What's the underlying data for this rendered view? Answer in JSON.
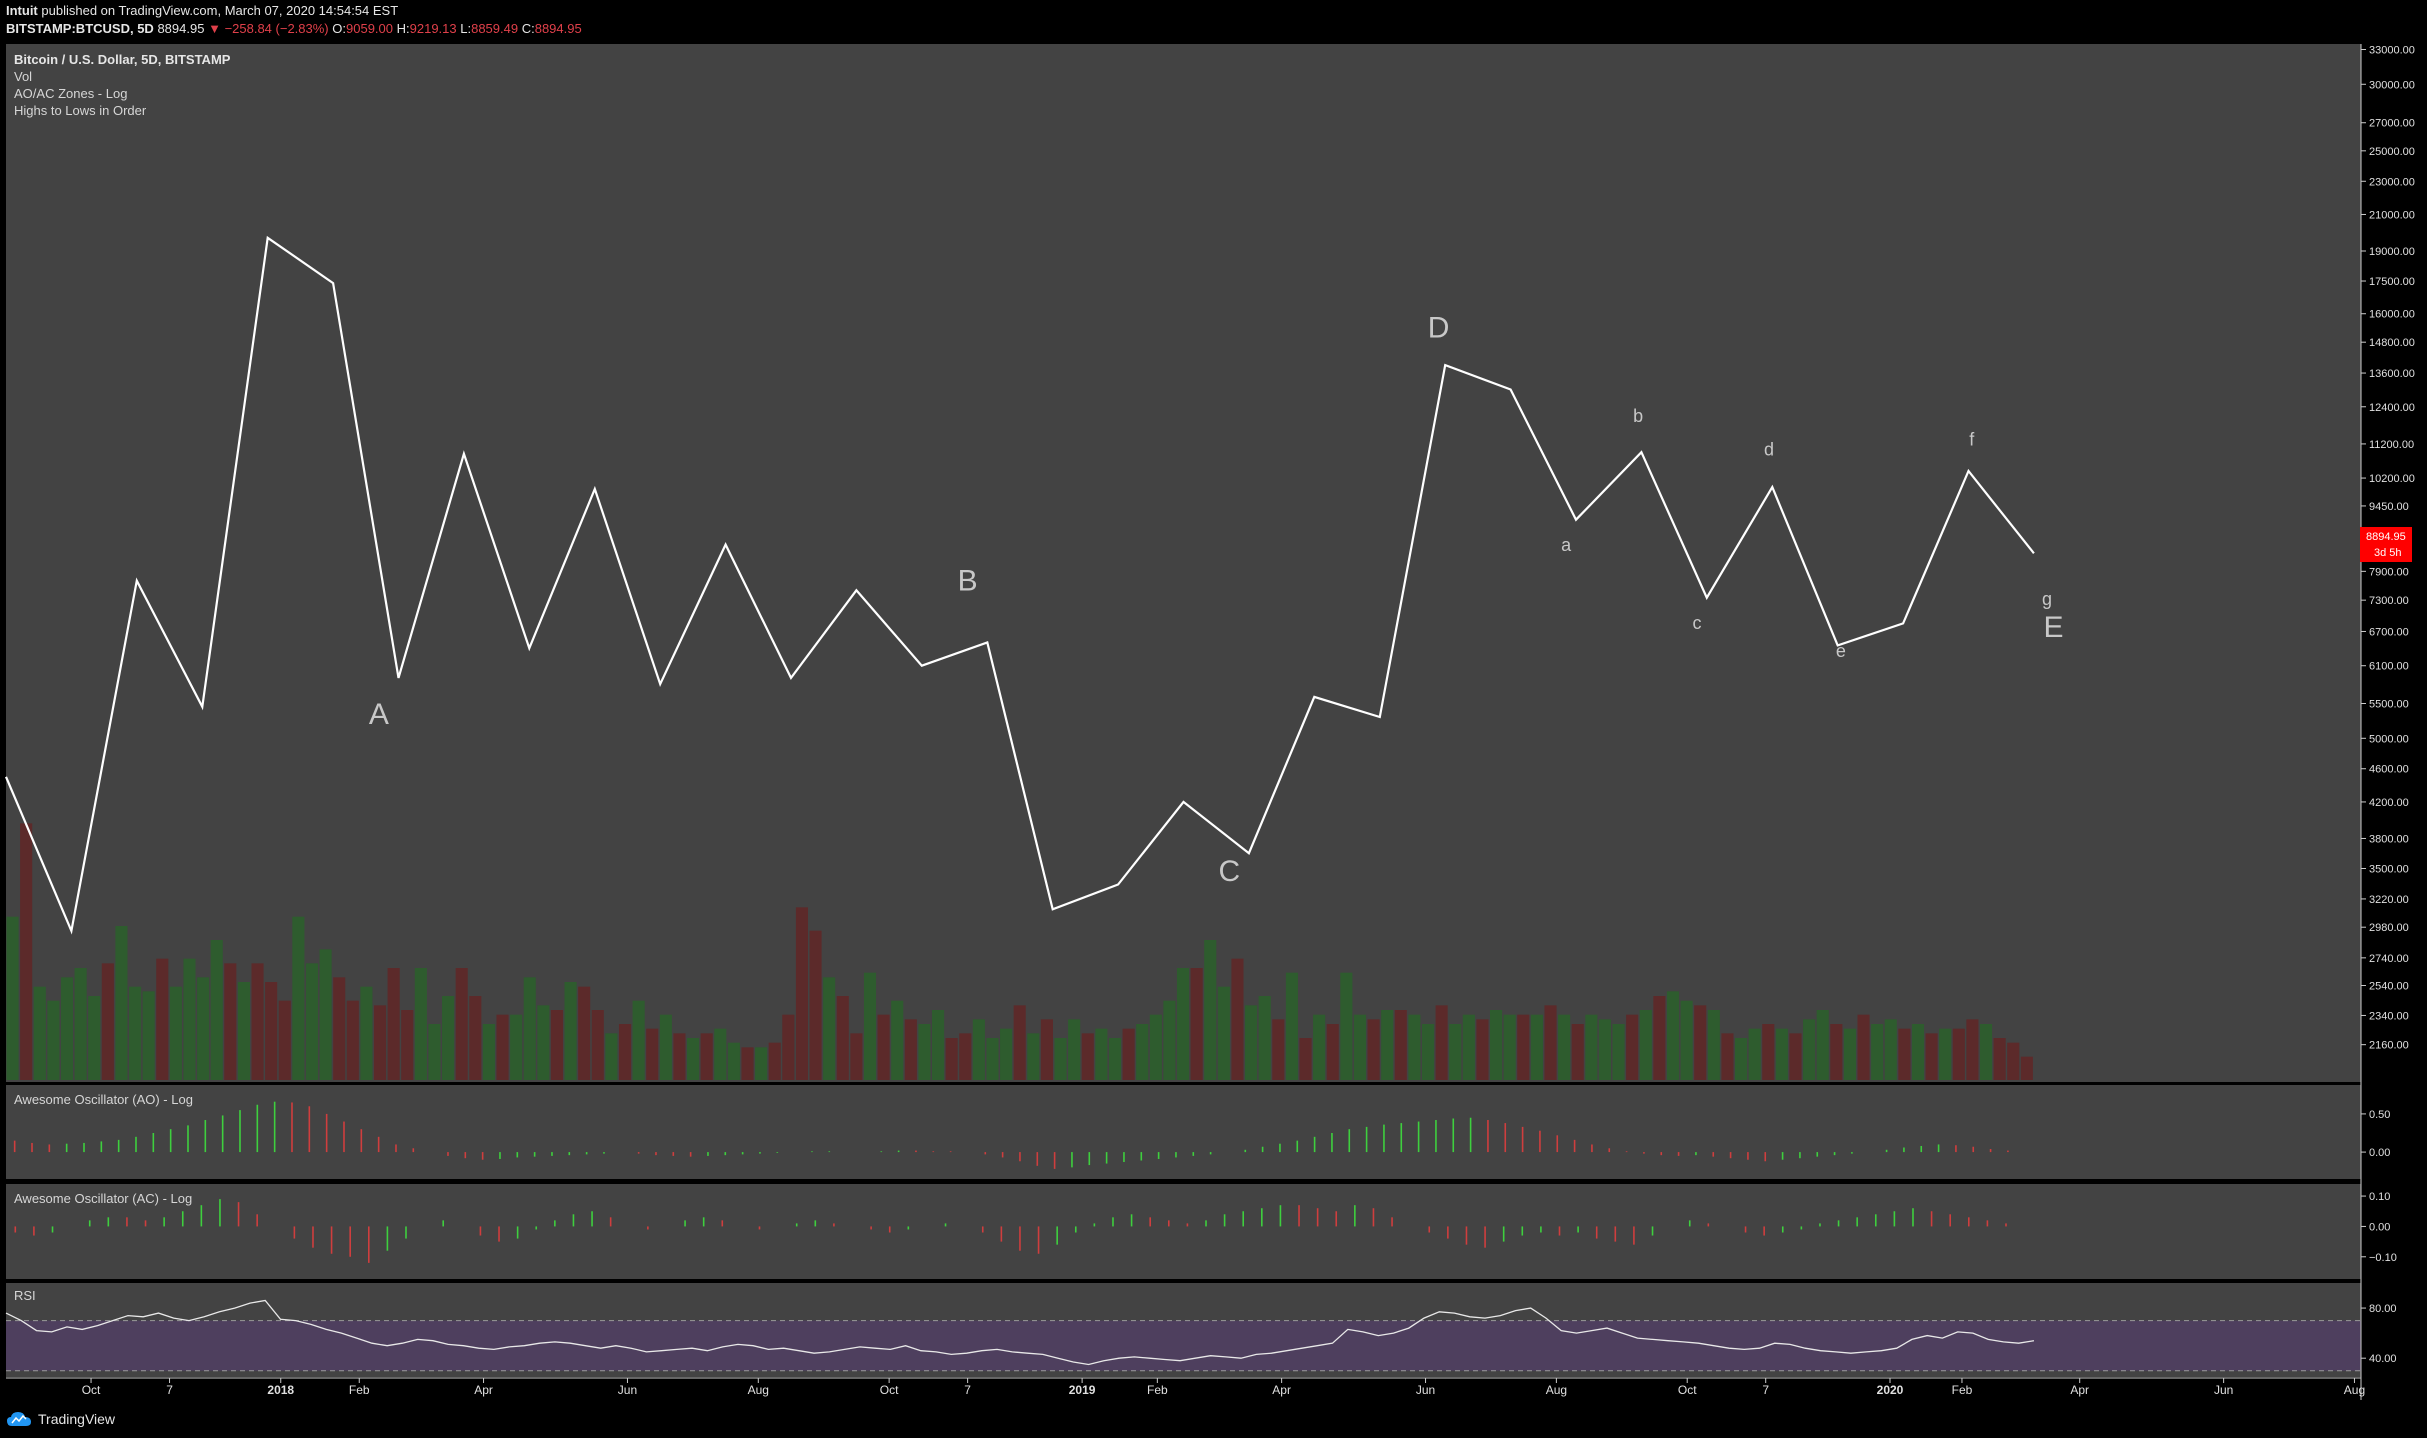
{
  "header": {
    "author": "Intuit",
    "published_text": "published on TradingView.com, March 07, 2020 14:54:54 EST",
    "symbol": "BITSTAMP:BTCUSD, 5D",
    "last": "8894.95",
    "change_arrow": "▼",
    "change": "−258.84 (−2.83%)",
    "open_label": "O:",
    "open": "9059.00",
    "high_label": "H:",
    "high": "9219.13",
    "low_label": "L:",
    "low": "8859.49",
    "close_label": "C:",
    "close": "8894.95"
  },
  "legend": {
    "title": "Bitcoin / U.S. Dollar, 5D, BITSTAMP",
    "vol": "Vol",
    "zones": "AO/AC Zones - Log",
    "highs": "Highs to Lows in Order"
  },
  "price_badge": {
    "price": "8894.95",
    "countdown": "3d 5h",
    "color": "#ff0000"
  },
  "panes": {
    "ao_title": "Awesome Oscillator (AO) - Log",
    "ac_title": "Awesome Oscillator (AC) - Log",
    "rsi_title": "RSI"
  },
  "footer": {
    "brand": "TradingView"
  },
  "colors": {
    "bg": "#000000",
    "pane": "#434343",
    "line": "#ffffff",
    "up": "#2e5c2e",
    "down": "#5c2a2a",
    "osc_up": "#3ecf3e",
    "osc_down": "#cf3e3e",
    "rsi_band": "#4e3f5e"
  },
  "chart_data": [
    {
      "type": "line",
      "name": "main",
      "scale": "log",
      "ylim": [
        1950,
        33500
      ],
      "y_ticks": [
        "33000.00",
        "30000.00",
        "27000.00",
        "25000.00",
        "23000.00",
        "21000.00",
        "19000.00",
        "17500.00",
        "16000.00",
        "14800.00",
        "13600.00",
        "12400.00",
        "11200.00",
        "10200.00",
        "9450.00",
        "8600.00",
        "7900.00",
        "7300.00",
        "6700.00",
        "6100.00",
        "5500.00",
        "5000.00",
        "4600.00",
        "4200.00",
        "3800.00",
        "3500.00",
        "3220.00",
        "2980.00",
        "2740.00",
        "2540.00",
        "2340.00",
        "2160.00"
      ],
      "x_ticks": [
        {
          "label": "Oct",
          "t": 1.3
        },
        {
          "label": "7",
          "t": 2.5
        },
        {
          "label": "2018",
          "t": 4.2
        },
        {
          "label": "Feb",
          "t": 5.4
        },
        {
          "label": "Apr",
          "t": 7.3
        },
        {
          "label": "Jun",
          "t": 9.5
        },
        {
          "label": "Aug",
          "t": 11.5
        },
        {
          "label": "Oct",
          "t": 13.5
        },
        {
          "label": "7",
          "t": 14.7
        },
        {
          "label": "2019",
          "t": 16.45
        },
        {
          "label": "Feb",
          "t": 17.6
        },
        {
          "label": "Apr",
          "t": 19.5
        },
        {
          "label": "Jun",
          "t": 21.7
        },
        {
          "label": "Aug",
          "t": 23.7
        },
        {
          "label": "Oct",
          "t": 25.7
        },
        {
          "label": "7",
          "t": 26.9
        },
        {
          "label": "2020",
          "t": 28.8
        },
        {
          "label": "Feb",
          "t": 29.9
        },
        {
          "label": "Apr",
          "t": 31.7
        },
        {
          "label": "Jun",
          "t": 33.9
        },
        {
          "label": "Aug",
          "t": 35.9
        }
      ],
      "x_range": [
        0,
        36
      ],
      "points": [
        {
          "t": 0,
          "y": 4500
        },
        {
          "t": 1,
          "y": 2950
        },
        {
          "t": 2,
          "y": 7700
        },
        {
          "t": 3,
          "y": 5450
        },
        {
          "t": 4,
          "y": 19700
        },
        {
          "t": 5,
          "y": 17400
        },
        {
          "t": 6,
          "y": 5900
        },
        {
          "t": 7,
          "y": 10900
        },
        {
          "t": 8,
          "y": 6400
        },
        {
          "t": 9,
          "y": 9900
        },
        {
          "t": 10,
          "y": 5800
        },
        {
          "t": 11,
          "y": 8500
        },
        {
          "t": 12,
          "y": 5900
        },
        {
          "t": 13,
          "y": 7500
        },
        {
          "t": 14,
          "y": 6100
        },
        {
          "t": 15,
          "y": 6500
        },
        {
          "t": 16,
          "y": 3130
        },
        {
          "t": 17,
          "y": 3350
        },
        {
          "t": 18,
          "y": 4200
        },
        {
          "t": 19,
          "y": 3650
        },
        {
          "t": 20,
          "y": 5600
        },
        {
          "t": 21,
          "y": 5300
        },
        {
          "t": 22,
          "y": 13900
        },
        {
          "t": 23,
          "y": 13000
        },
        {
          "t": 24,
          "y": 9100
        },
        {
          "t": 25,
          "y": 10950
        },
        {
          "t": 26,
          "y": 7350
        },
        {
          "t": 27,
          "y": 9950
        },
        {
          "t": 28,
          "y": 6450
        },
        {
          "t": 29,
          "y": 6850
        },
        {
          "t": 30,
          "y": 10400
        },
        {
          "t": 31,
          "y": 8300
        }
      ],
      "annotations": [
        {
          "text": "A",
          "t": 5.7,
          "y": 5200,
          "size": "big"
        },
        {
          "text": "B",
          "t": 14.7,
          "y": 7500,
          "size": "big"
        },
        {
          "text": "C",
          "t": 18.7,
          "y": 3380,
          "size": "big"
        },
        {
          "text": "D",
          "t": 21.9,
          "y": 15000,
          "size": "big"
        },
        {
          "text": "E",
          "t": 31.3,
          "y": 6600,
          "size": "big"
        },
        {
          "text": "a",
          "t": 23.85,
          "y": 8350,
          "size": "small"
        },
        {
          "text": "b",
          "t": 24.95,
          "y": 11900,
          "size": "small"
        },
        {
          "text": "c",
          "t": 25.85,
          "y": 6750,
          "size": "small"
        },
        {
          "text": "d",
          "t": 26.95,
          "y": 10850,
          "size": "small"
        },
        {
          "text": "e",
          "t": 28.05,
          "y": 6250,
          "size": "small"
        },
        {
          "text": "f",
          "t": 30.05,
          "y": 11150,
          "size": "small"
        },
        {
          "text": "g",
          "t": 31.2,
          "y": 7200,
          "size": "small"
        }
      ]
    },
    {
      "type": "bar",
      "name": "volume",
      "values": [
        35,
        55,
        20,
        17,
        22,
        24,
        18,
        25,
        33,
        20,
        19,
        26,
        20,
        26,
        22,
        30,
        25,
        21,
        25,
        21,
        17,
        35,
        25,
        28,
        22,
        17,
        20,
        16,
        24,
        15,
        24,
        12,
        18,
        24,
        18,
        12,
        14,
        14,
        22,
        16,
        15,
        21,
        20,
        15,
        10,
        12,
        17,
        11,
        14,
        10,
        9,
        10,
        11,
        8,
        7,
        7,
        8,
        14,
        37,
        32,
        22,
        18,
        10,
        23,
        14,
        17,
        13,
        12,
        15,
        9,
        10,
        13,
        9,
        11,
        16,
        10,
        13,
        9,
        13,
        10,
        11,
        9,
        11,
        12,
        14,
        17,
        24,
        24,
        30,
        20,
        26,
        16,
        18,
        13,
        23,
        9,
        14,
        12,
        23,
        14,
        13,
        15,
        15,
        14,
        12,
        16,
        12,
        14,
        13,
        15,
        14,
        14,
        14,
        16,
        14,
        12,
        14,
        13,
        12,
        14,
        15,
        18,
        19,
        17,
        16,
        15,
        10,
        9,
        11,
        12,
        11,
        10,
        13,
        15,
        12,
        11,
        14,
        12,
        13,
        11,
        12,
        10,
        11,
        11,
        13,
        12,
        9,
        8,
        5
      ],
      "up": [
        true,
        false,
        true,
        true,
        true,
        true,
        true,
        false,
        true,
        true,
        true,
        false,
        true,
        true,
        true,
        true,
        false,
        true,
        false,
        false,
        false,
        true,
        true,
        true,
        false,
        false,
        true,
        false,
        false,
        false,
        true,
        true,
        true,
        false,
        false,
        true,
        false,
        true,
        true,
        true,
        false,
        true,
        false,
        false,
        true,
        false,
        true,
        false,
        true,
        false,
        true,
        false,
        true,
        true,
        false,
        true,
        false,
        false,
        false,
        false,
        true,
        false,
        false,
        true,
        false,
        true,
        false,
        true,
        true,
        false,
        false,
        true,
        true,
        true,
        false,
        true,
        false,
        true,
        true,
        false,
        true,
        true,
        false,
        true,
        true,
        true,
        true,
        false,
        true,
        true,
        false,
        true,
        true,
        false,
        true,
        false,
        true,
        false,
        true,
        true,
        false,
        true,
        false,
        true,
        true,
        false,
        true,
        true,
        false,
        true,
        true,
        false,
        true,
        false,
        true,
        false,
        true,
        true,
        true,
        false,
        true,
        false,
        true,
        true,
        false,
        true,
        false,
        true,
        true,
        false,
        true,
        false,
        true,
        true,
        false,
        true,
        false,
        true,
        true,
        false,
        true,
        false,
        true,
        false,
        false,
        true,
        false,
        false,
        false
      ],
      "ylim": [
        0,
        60
      ]
    },
    {
      "type": "bar",
      "name": "AO",
      "y_ticks": [
        "0.50",
        "0.00"
      ],
      "ylim": [
        -0.3,
        0.8
      ],
      "values": [
        0.15,
        0.12,
        0.1,
        0.11,
        0.12,
        0.14,
        0.16,
        0.2,
        0.25,
        0.3,
        0.35,
        0.42,
        0.48,
        0.55,
        0.62,
        0.66,
        0.65,
        0.6,
        0.5,
        0.4,
        0.3,
        0.2,
        0.1,
        0.05,
        0.0,
        -0.05,
        -0.08,
        -0.1,
        -0.09,
        -0.07,
        -0.06,
        -0.05,
        -0.04,
        -0.03,
        -0.02,
        0.0,
        -0.02,
        -0.04,
        -0.05,
        -0.06,
        -0.05,
        -0.04,
        -0.03,
        -0.02,
        -0.01,
        0.0,
        0.01,
        0.01,
        0.0,
        0.0,
        0.01,
        0.02,
        0.02,
        0.01,
        0.01,
        0.0,
        -0.03,
        -0.07,
        -0.12,
        -0.18,
        -0.22,
        -0.2,
        -0.17,
        -0.15,
        -0.13,
        -0.11,
        -0.09,
        -0.07,
        -0.05,
        -0.03,
        0.0,
        0.03,
        0.07,
        0.11,
        0.15,
        0.2,
        0.25,
        0.3,
        0.33,
        0.36,
        0.38,
        0.4,
        0.42,
        0.44,
        0.45,
        0.42,
        0.38,
        0.33,
        0.28,
        0.22,
        0.16,
        0.1,
        0.05,
        0.01,
        -0.02,
        -0.04,
        -0.05,
        -0.04,
        -0.06,
        -0.08,
        -0.1,
        -0.12,
        -0.1,
        -0.08,
        -0.06,
        -0.04,
        -0.02,
        0.0,
        0.03,
        0.06,
        0.08,
        0.1,
        0.09,
        0.07,
        0.04,
        0.02,
        0.0
      ],
      "up": [
        false,
        false,
        false,
        true,
        true,
        true,
        true,
        true,
        true,
        true,
        true,
        true,
        true,
        true,
        true,
        true,
        false,
        false,
        false,
        false,
        false,
        false,
        false,
        false,
        false,
        false,
        false,
        false,
        true,
        true,
        true,
        true,
        true,
        true,
        true,
        true,
        false,
        false,
        false,
        false,
        true,
        true,
        true,
        true,
        true,
        true,
        true,
        true,
        false,
        false,
        true,
        true,
        false,
        false,
        false,
        false,
        false,
        false,
        false,
        false,
        false,
        true,
        true,
        true,
        true,
        true,
        true,
        true,
        true,
        true,
        true,
        true,
        true,
        true,
        true,
        true,
        true,
        true,
        true,
        true,
        true,
        true,
        true,
        true,
        true,
        false,
        false,
        false,
        false,
        false,
        false,
        false,
        false,
        false,
        false,
        false,
        false,
        true,
        false,
        false,
        false,
        false,
        true,
        true,
        true,
        true,
        true,
        true,
        true,
        true,
        true,
        true,
        false,
        false,
        false,
        false,
        false
      ]
    },
    {
      "type": "bar",
      "name": "AC",
      "y_ticks": [
        "0.10",
        "0.00",
        "−0.10"
      ],
      "ylim": [
        -0.16,
        0.12
      ],
      "values": [
        -0.02,
        -0.03,
        -0.02,
        0.0,
        0.02,
        0.03,
        0.03,
        0.02,
        0.03,
        0.05,
        0.07,
        0.09,
        0.08,
        0.04,
        0.0,
        -0.04,
        -0.07,
        -0.09,
        -0.1,
        -0.12,
        -0.08,
        -0.04,
        0.0,
        0.02,
        0.0,
        -0.03,
        -0.05,
        -0.04,
        -0.01,
        0.02,
        0.04,
        0.05,
        0.03,
        0.0,
        -0.01,
        0.0,
        0.02,
        0.03,
        0.02,
        0.0,
        -0.01,
        0.0,
        0.01,
        0.02,
        0.01,
        0.0,
        -0.01,
        -0.02,
        -0.01,
        0.0,
        0.01,
        0.0,
        -0.02,
        -0.05,
        -0.08,
        -0.09,
        -0.06,
        -0.02,
        0.01,
        0.03,
        0.04,
        0.03,
        0.02,
        0.01,
        0.02,
        0.04,
        0.05,
        0.06,
        0.07,
        0.07,
        0.06,
        0.05,
        0.07,
        0.06,
        0.03,
        0.0,
        -0.02,
        -0.04,
        -0.06,
        -0.07,
        -0.05,
        -0.03,
        -0.02,
        -0.03,
        -0.02,
        -0.04,
        -0.05,
        -0.06,
        -0.03,
        0.0,
        0.02,
        0.01,
        0.0,
        -0.02,
        -0.03,
        -0.02,
        -0.01,
        0.01,
        0.02,
        0.03,
        0.04,
        0.05,
        0.06,
        0.05,
        0.04,
        0.03,
        0.02,
        0.01,
        0.0
      ],
      "up": [
        false,
        false,
        true,
        true,
        true,
        true,
        false,
        false,
        true,
        true,
        true,
        true,
        false,
        false,
        false,
        false,
        false,
        false,
        false,
        false,
        true,
        true,
        true,
        true,
        false,
        false,
        false,
        true,
        true,
        true,
        true,
        true,
        false,
        false,
        false,
        true,
        true,
        true,
        false,
        false,
        false,
        true,
        true,
        true,
        false,
        false,
        false,
        false,
        true,
        true,
        true,
        false,
        false,
        false,
        false,
        false,
        true,
        true,
        true,
        true,
        true,
        false,
        false,
        false,
        true,
        true,
        true,
        true,
        true,
        false,
        false,
        false,
        true,
        false,
        false,
        false,
        false,
        false,
        false,
        false,
        true,
        true,
        true,
        false,
        true,
        false,
        false,
        false,
        true,
        true,
        true,
        false,
        false,
        false,
        false,
        true,
        true,
        true,
        true,
        true,
        true,
        true,
        true,
        false,
        false,
        false,
        false,
        false,
        false,
        false
      ]
    },
    {
      "type": "line",
      "name": "RSI",
      "y_ticks": [
        "80.00",
        "40.00"
      ],
      "ylim": [
        25,
        100
      ],
      "band": [
        30,
        70
      ],
      "values": [
        76,
        70,
        62,
        61,
        65,
        63,
        66,
        70,
        74,
        73,
        76,
        72,
        70,
        73,
        77,
        80,
        84,
        86,
        71,
        70,
        67,
        63,
        60,
        56,
        52,
        50,
        52,
        55,
        54,
        51,
        50,
        48,
        47,
        49,
        50,
        52,
        53,
        52,
        50,
        48,
        50,
        48,
        45,
        46,
        47,
        48,
        46,
        49,
        51,
        50,
        47,
        48,
        46,
        44,
        45,
        47,
        49,
        48,
        47,
        50,
        46,
        45,
        43,
        44,
        46,
        47,
        45,
        44,
        43,
        40,
        37,
        35,
        38,
        40,
        41,
        40,
        39,
        38,
        40,
        42,
        41,
        40,
        43,
        44,
        46,
        48,
        50,
        52,
        63,
        61,
        58,
        60,
        64,
        72,
        77,
        76,
        73,
        72,
        74,
        78,
        80,
        72,
        62,
        60,
        62,
        64,
        60,
        56,
        55,
        54,
        53,
        52,
        50,
        48,
        47,
        48,
        52,
        51,
        48,
        46,
        45,
        44,
        45,
        46,
        48,
        55,
        58,
        56,
        61,
        60,
        55,
        53,
        52,
        54
      ]
    }
  ]
}
